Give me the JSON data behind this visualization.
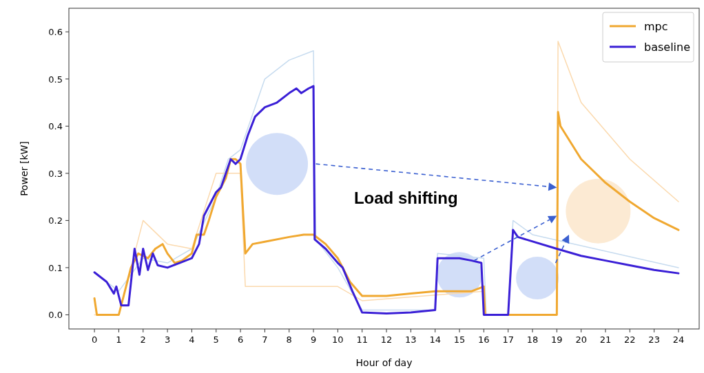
{
  "chart_data": {
    "type": "line",
    "xlabel": "Hour of day",
    "ylabel": "Power [kW]",
    "annotations": [
      "Load shifting"
    ],
    "xlim": [
      -1.05,
      24.85
    ],
    "ylim": [
      -0.03,
      0.65
    ],
    "xticks": [
      0,
      1,
      2,
      3,
      4,
      5,
      6,
      7,
      8,
      9,
      10,
      11,
      12,
      13,
      14,
      15,
      16,
      17,
      18,
      19,
      20,
      21,
      22,
      23,
      24
    ],
    "yticks": [
      {
        "value": 0,
        "label": "0.0"
      },
      {
        "value": 0.1,
        "label": "0.1"
      },
      {
        "value": 0.2,
        "label": "0.2"
      },
      {
        "value": 0.3,
        "label": "0.3"
      },
      {
        "value": 0.4,
        "label": "0.4"
      },
      {
        "value": 0.5,
        "label": "0.5"
      },
      {
        "value": 0.6,
        "label": "0.6"
      }
    ],
    "grid": false,
    "legend": "top right",
    "line_style": "solid",
    "series": [
      {
        "color": "#c6dbef",
        "x": [
          0,
          1,
          2,
          3,
          4,
          5,
          5.5,
          6,
          7,
          8,
          9,
          9.1,
          10,
          11,
          14,
          14.1,
          16,
          16.1,
          17,
          17.2,
          18,
          24
        ],
        "values": [
          0.09,
          0.05,
          0.12,
          0.11,
          0.14,
          0.25,
          0.33,
          0.35,
          0.5,
          0.54,
          0.56,
          0.16,
          0.1,
          0.01,
          0.01,
          0.13,
          0.12,
          0,
          0,
          0.2,
          0.17,
          0.1
        ]
      },
      {
        "color": "#fbd9ad",
        "x": [
          0,
          1,
          2,
          3,
          4,
          5,
          6,
          6.2,
          9,
          10,
          11,
          16,
          16.1,
          19,
          19.05,
          20,
          22,
          24
        ],
        "values": [
          0,
          0,
          0.2,
          0.15,
          0.14,
          0.3,
          0.3,
          0.06,
          0.06,
          0.06,
          0.03,
          0.05,
          0,
          0,
          0.58,
          0.45,
          0.33,
          0.24
        ]
      },
      {
        "name": "mpc",
        "color": "#f0a830",
        "x": [
          0,
          0.1,
          1,
          1.2,
          1.5,
          1.8,
          2.2,
          2.5,
          2.8,
          3,
          3.3,
          3.6,
          4,
          4.2,
          4.5,
          4.7,
          5,
          5.4,
          5.6,
          5.8,
          6,
          6.2,
          6.5,
          7,
          8,
          8.6,
          9,
          9.5,
          10,
          10.5,
          11,
          12,
          13,
          14,
          15,
          15.5,
          16,
          16.05,
          19,
          19.05,
          19.15,
          20,
          21,
          22,
          23,
          24
        ],
        "values": [
          0.035,
          0,
          0,
          0.04,
          0.1,
          0.13,
          0.12,
          0.14,
          0.15,
          0.13,
          0.11,
          0.115,
          0.13,
          0.17,
          0.17,
          0.2,
          0.25,
          0.29,
          0.33,
          0.33,
          0.32,
          0.13,
          0.15,
          0.155,
          0.165,
          0.17,
          0.17,
          0.15,
          0.12,
          0.07,
          0.04,
          0.04,
          0.045,
          0.05,
          0.05,
          0.05,
          0.06,
          0,
          0,
          0.43,
          0.4,
          0.33,
          0.28,
          0.24,
          0.205,
          0.18
        ]
      },
      {
        "name": "baseline",
        "color": "#3a1fd6",
        "x": [
          0,
          0.5,
          0.8,
          0.9,
          1,
          1.1,
          1.4,
          1.65,
          1.85,
          2,
          2.2,
          2.4,
          2.6,
          3,
          3.5,
          4,
          4.3,
          4.5,
          4.8,
          5,
          5.2,
          5.4,
          5.6,
          5.8,
          6,
          6.3,
          6.6,
          7,
          7.5,
          8,
          8.3,
          8.5,
          8.8,
          9,
          9.05,
          9.5,
          10,
          10.2,
          10.6,
          11,
          12,
          13,
          14,
          14.1,
          15,
          15.5,
          15.9,
          16,
          17,
          17.2,
          17.4,
          19,
          20,
          21,
          22,
          23,
          24
        ],
        "values": [
          0.09,
          0.07,
          0.045,
          0.06,
          0.04,
          0.02,
          0.02,
          0.14,
          0.085,
          0.14,
          0.095,
          0.13,
          0.105,
          0.1,
          0.11,
          0.12,
          0.15,
          0.21,
          0.24,
          0.26,
          0.27,
          0.3,
          0.33,
          0.32,
          0.33,
          0.38,
          0.42,
          0.44,
          0.45,
          0.47,
          0.48,
          0.47,
          0.48,
          0.485,
          0.16,
          0.14,
          0.11,
          0.1,
          0.05,
          0.005,
          0.003,
          0.005,
          0.01,
          0.12,
          0.12,
          0.115,
          0.11,
          0,
          0,
          0.18,
          0.165,
          0.14,
          0.125,
          0.115,
          0.105,
          0.095,
          0.088
        ]
      }
    ]
  }
}
